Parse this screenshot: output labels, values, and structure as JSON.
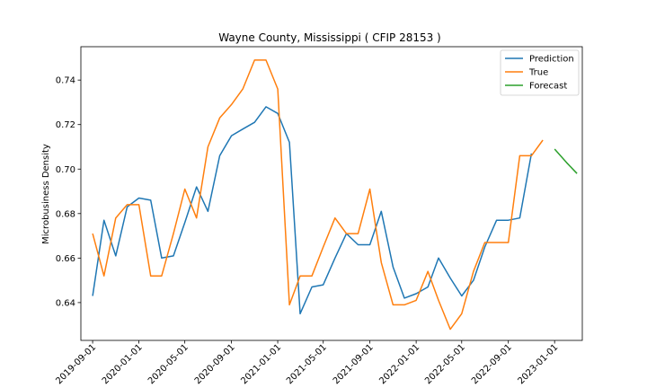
{
  "chart_data": {
    "type": "line",
    "title": "Wayne County, Mississippi ( CFIP 28153 )",
    "xlabel": "",
    "ylabel": "Microbusiness Density",
    "xlim": [
      "2019-08-01",
      "2023-03-15"
    ],
    "ylim": [
      0.623,
      0.755
    ],
    "x_ticks": [
      "2019-09-01",
      "2020-01-01",
      "2020-05-01",
      "2020-09-01",
      "2021-01-01",
      "2021-05-01",
      "2021-09-01",
      "2022-01-01",
      "2022-05-01",
      "2022-09-01",
      "2023-01-01"
    ],
    "y_ticks": [
      0.64,
      0.66,
      0.68,
      0.7,
      0.72,
      0.74
    ],
    "y_tick_labels": [
      "0.64",
      "0.66",
      "0.68",
      "0.70",
      "0.72",
      "0.74"
    ],
    "grid": false,
    "legend_position": "top-right",
    "series": [
      {
        "name": "Prediction",
        "color": "#1f77b4",
        "x": [
          "2019-09-01",
          "2019-10-01",
          "2019-11-01",
          "2019-12-01",
          "2020-01-01",
          "2020-02-01",
          "2020-03-01",
          "2020-04-01",
          "2020-05-01",
          "2020-06-01",
          "2020-07-01",
          "2020-08-01",
          "2020-09-01",
          "2020-10-01",
          "2020-11-01",
          "2020-12-01",
          "2021-01-01",
          "2021-02-01",
          "2021-03-01",
          "2021-04-01",
          "2021-05-01",
          "2021-06-01",
          "2021-07-01",
          "2021-08-01",
          "2021-09-01",
          "2021-10-01",
          "2021-11-01",
          "2021-12-01",
          "2022-01-01",
          "2022-02-01",
          "2022-03-01",
          "2022-04-01",
          "2022-05-01",
          "2022-06-01",
          "2022-07-01",
          "2022-08-01",
          "2022-09-01",
          "2022-10-01",
          "2022-11-01"
        ],
        "values": [
          0.643,
          0.677,
          0.661,
          0.683,
          0.687,
          0.686,
          0.66,
          0.661,
          0.676,
          0.692,
          0.681,
          0.706,
          0.715,
          0.718,
          0.721,
          0.728,
          0.725,
          0.712,
          0.635,
          0.647,
          0.648,
          0.66,
          0.671,
          0.666,
          0.666,
          0.681,
          0.656,
          0.642,
          0.644,
          0.647,
          0.66,
          0.651,
          0.643,
          0.65,
          0.665,
          0.677,
          0.677,
          0.678,
          0.707
        ]
      },
      {
        "name": "True",
        "color": "#ff7f0e",
        "x": [
          "2019-09-01",
          "2019-10-01",
          "2019-11-01",
          "2019-12-01",
          "2020-01-01",
          "2020-02-01",
          "2020-03-01",
          "2020-04-01",
          "2020-05-01",
          "2020-06-01",
          "2020-07-01",
          "2020-08-01",
          "2020-09-01",
          "2020-10-01",
          "2020-11-01",
          "2020-12-01",
          "2021-01-01",
          "2021-02-01",
          "2021-03-01",
          "2021-04-01",
          "2021-05-01",
          "2021-06-01",
          "2021-07-01",
          "2021-08-01",
          "2021-09-01",
          "2021-10-01",
          "2021-11-01",
          "2021-12-01",
          "2022-01-01",
          "2022-02-01",
          "2022-03-01",
          "2022-04-01",
          "2022-05-01",
          "2022-06-01",
          "2022-07-01",
          "2022-08-01",
          "2022-09-01",
          "2022-10-01",
          "2022-11-01",
          "2022-12-01"
        ],
        "values": [
          0.671,
          0.652,
          0.678,
          0.684,
          0.684,
          0.652,
          0.652,
          0.671,
          0.691,
          0.678,
          0.71,
          0.723,
          0.729,
          0.736,
          0.749,
          0.749,
          0.736,
          0.639,
          0.652,
          0.652,
          0.665,
          0.678,
          0.671,
          0.671,
          0.691,
          0.658,
          0.639,
          0.639,
          0.641,
          0.654,
          0.641,
          0.628,
          0.635,
          0.654,
          0.667,
          0.667,
          0.667,
          0.706,
          0.706,
          0.713
        ]
      },
      {
        "name": "Forecast",
        "color": "#2ca02c",
        "x": [
          "2023-01-01",
          "2023-02-01",
          "2023-03-01"
        ],
        "values": [
          0.709,
          0.703,
          0.698
        ]
      }
    ]
  }
}
